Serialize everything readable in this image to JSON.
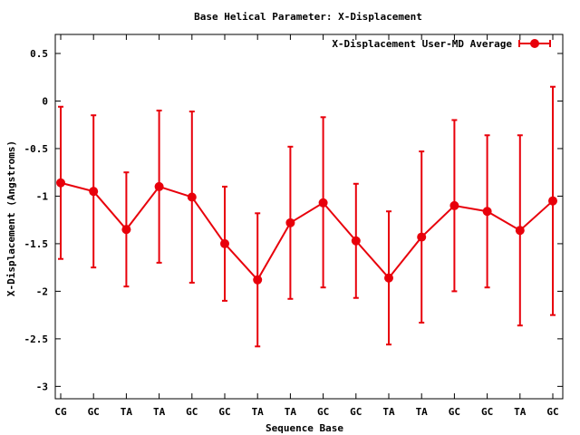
{
  "chart_data": {
    "type": "line",
    "title": "Base  Helical Parameter: X-Displacement",
    "xlabel": "Sequence Base",
    "ylabel": "X-Displacement (Angstroms)",
    "categories": [
      "CG",
      "GC",
      "TA",
      "TA",
      "GC",
      "GC",
      "TA",
      "TA",
      "GC",
      "GC",
      "TA",
      "TA",
      "GC",
      "GC",
      "TA",
      "GC"
    ],
    "ylim": [
      -3.13,
      0.7
    ],
    "yticks": [
      0.5,
      0,
      -0.5,
      -1,
      -1.5,
      -2,
      -2.5,
      -3
    ],
    "ytick_labels": [
      "0.5",
      "0",
      "-0.5",
      "-1",
      "-1.5",
      "-2",
      "-2.5",
      "-3"
    ],
    "grid": false,
    "legend_position": "top-right",
    "series": [
      {
        "name": "X-Displacement User-MD Average",
        "color": "#e8000b",
        "values": [
          -0.86,
          -0.95,
          -1.35,
          -0.9,
          -1.01,
          -1.5,
          -1.88,
          -1.28,
          -1.07,
          -1.47,
          -1.86,
          -1.43,
          -1.1,
          -1.16,
          -1.36,
          -1.05
        ],
        "error_low": [
          -1.66,
          -1.75,
          -1.95,
          -1.7,
          -1.91,
          -2.1,
          -2.58,
          -2.08,
          -1.96,
          -2.07,
          -2.56,
          -2.33,
          -2.0,
          -1.96,
          -2.36,
          -2.25
        ],
        "error_high": [
          -0.06,
          -0.15,
          -0.75,
          -0.1,
          -0.11,
          -0.9,
          -1.18,
          -0.48,
          -0.17,
          -0.87,
          -1.16,
          -0.53,
          -0.2,
          -0.36,
          -0.36,
          0.15
        ]
      }
    ]
  }
}
